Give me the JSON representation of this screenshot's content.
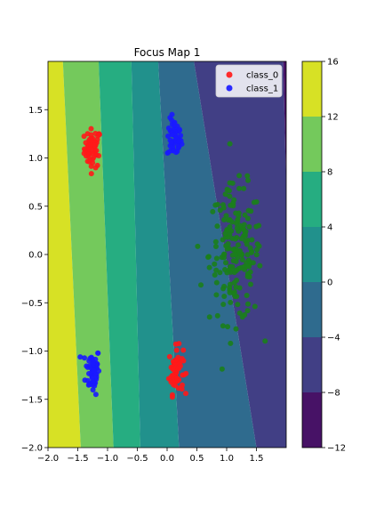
{
  "chart_data": {
    "type": "scatter",
    "title": "Focus Map 1",
    "xlabel": "",
    "ylabel": "",
    "xlim": [
      -2.0,
      2.0
    ],
    "ylim": [
      -2.0,
      2.0
    ],
    "x_ticks": [
      -2.0,
      -1.5,
      -1.0,
      -0.5,
      0.0,
      0.5,
      1.0,
      1.5
    ],
    "x_tick_labels": [
      "−2.0",
      "−1.5",
      "−1.0",
      "−0.5",
      "0.0",
      "0.5",
      "1.0",
      "1.5"
    ],
    "y_ticks": [
      -2.0,
      -1.5,
      -1.0,
      -0.5,
      0.0,
      0.5,
      1.0,
      1.5
    ],
    "y_tick_labels": [
      "−2.0",
      "−1.5",
      "−1.0",
      "−0.5",
      "0.0",
      "0.5",
      "1.0",
      "1.5"
    ],
    "grid": false,
    "legend_position": "top-right",
    "legend": [
      {
        "label": "class_0",
        "color": "#ff2a2a"
      },
      {
        "label": "class_1",
        "color": "#2a2aff"
      }
    ],
    "background_contour": {
      "levels": [
        -12,
        -8,
        -4,
        0,
        4,
        8,
        12,
        16
      ],
      "colors": [
        "#471266",
        "#413f85",
        "#2f6b8e",
        "#21918c",
        "#26ad81",
        "#74c95c",
        "#d7e125"
      ],
      "colorbar_tick_labels": [
        "−12",
        "−8",
        "−4",
        "0",
        "4",
        "8",
        "12",
        "16"
      ]
    },
    "clusters": [
      {
        "series": "class_0",
        "color": "#ff1a1a",
        "center": [
          -1.25,
          1.1
        ],
        "spread": [
          0.07,
          0.1
        ],
        "count": 60
      },
      {
        "series": "class_1",
        "color": "#1a1aff",
        "center": [
          0.12,
          1.2
        ],
        "spread": [
          0.06,
          0.1
        ],
        "count": 60
      },
      {
        "series": "class_1",
        "color": "#1a1aff",
        "center": [
          -1.25,
          -1.2
        ],
        "spread": [
          0.06,
          0.12
        ],
        "count": 60
      },
      {
        "series": "class_0",
        "color": "#ff1a1a",
        "center": [
          0.15,
          -1.2
        ],
        "spread": [
          0.06,
          0.12
        ],
        "count": 60
      },
      {
        "series": "unlabeled",
        "color": "#1b7f1b",
        "center": [
          1.15,
          0.0
        ],
        "spread": [
          0.22,
          0.35
        ],
        "count": 180
      }
    ]
  }
}
